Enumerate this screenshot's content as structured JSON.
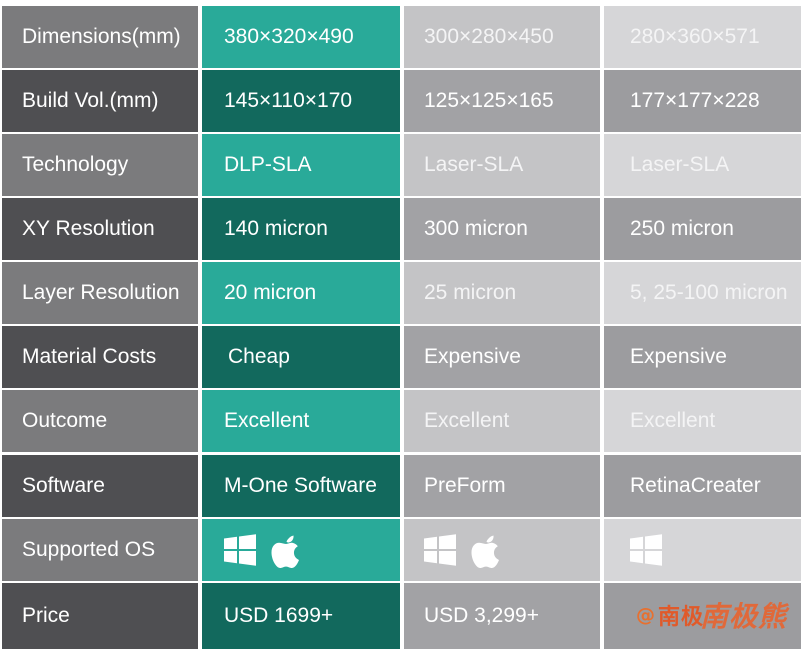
{
  "rows": [
    {
      "label": "Dimensions(mm)",
      "v1": "380×320×490",
      "v2": "300×280×450",
      "v3": "280×360×571"
    },
    {
      "label": "Build Vol.(mm)",
      "v1": "145×110×170",
      "v2": "125×125×165",
      "v3": "177×177×228"
    },
    {
      "label": "Technology",
      "v1": "DLP-SLA",
      "v2": "Laser-SLA",
      "v3": "Laser-SLA"
    },
    {
      "label": "XY Resolution",
      "v1": "140 micron",
      "v2": "300 micron",
      "v3": "250 micron"
    },
    {
      "label": "Layer Resolution",
      "v1": "20 micron",
      "v2": "25 micron",
      "v3": "5, 25-100 micron"
    },
    {
      "label": "Material Costs",
      "v1": "Cheap",
      "v2": "Expensive",
      "v3": "Expensive"
    },
    {
      "label": "Outcome",
      "v1": "Excellent",
      "v2": "Excellent",
      "v3": "Excellent"
    },
    {
      "label": "Software",
      "v1": "M-One Software",
      "v2": "PreForm",
      "v3": "RetinaCreater"
    },
    {
      "label": "Supported OS",
      "v1": "",
      "v2": "",
      "v3": ""
    },
    {
      "label": "Price",
      "v1": "USD 1699+",
      "v2": "USD 3,299+",
      "v3": ""
    }
  ],
  "supported_os": {
    "col1": [
      "windows-icon",
      "apple-icon"
    ],
    "col2": [
      "windows-icon",
      "apple-icon"
    ],
    "col3": [
      "windows-icon"
    ]
  },
  "watermark": {
    "at": "@",
    "text": "南极",
    "big": "南极熊"
  },
  "colors": {
    "label_light": "#7b7b7d",
    "label_dark": "#4f4f52",
    "teal_light": "#29aa99",
    "teal_dark": "#12695d",
    "mid_light": "#c4c4c6",
    "mid_dark": "#a2a2a5",
    "right_light": "#d6d6d8",
    "right_dark": "#9c9c9f",
    "text_white": "#ffffff",
    "text_on_light": "#f2f2f3",
    "text_on_dark": "#ffffff"
  }
}
